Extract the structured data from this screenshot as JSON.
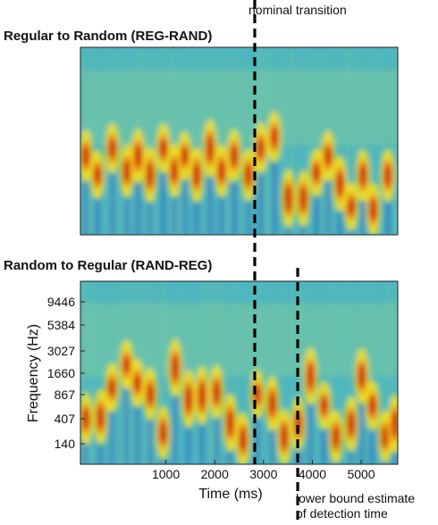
{
  "figure": {
    "top_panel_title": "Regular to Random (REG-RAND)",
    "bottom_panel_title": "Random to Regular (RAND-REG)",
    "annotation_nominal": "nominal transition",
    "annotation_detection_line1": "lower bound estimate",
    "annotation_detection_line2": "of detection time"
  },
  "chart_data": [
    {
      "type": "heatmap",
      "title": "Regular to Random (REG-RAND)",
      "xlabel": "",
      "ylabel": "",
      "xlim": [
        -750,
        5750
      ],
      "transition_time_ms": 2820
    },
    {
      "type": "heatmap",
      "title": "Random to Regular (RAND-REG)",
      "xlabel": "Time (ms)",
      "ylabel": "Frequency (Hz)",
      "xlim": [
        -750,
        5750
      ],
      "x_ticks": [
        1000,
        2000,
        3000,
        4000,
        5000
      ],
      "y_ticks": [
        140,
        407,
        867,
        1660,
        3027,
        5384,
        9446
      ],
      "transition_time_ms": 2820,
      "detection_time_ms": 3700
    }
  ],
  "colors": {
    "background": "#3eb0c8",
    "mid": "#7ac8a0",
    "high": "#f5e020",
    "peak": "#cc1010",
    "low": "#2060c0",
    "dashed_line": "#000000"
  }
}
